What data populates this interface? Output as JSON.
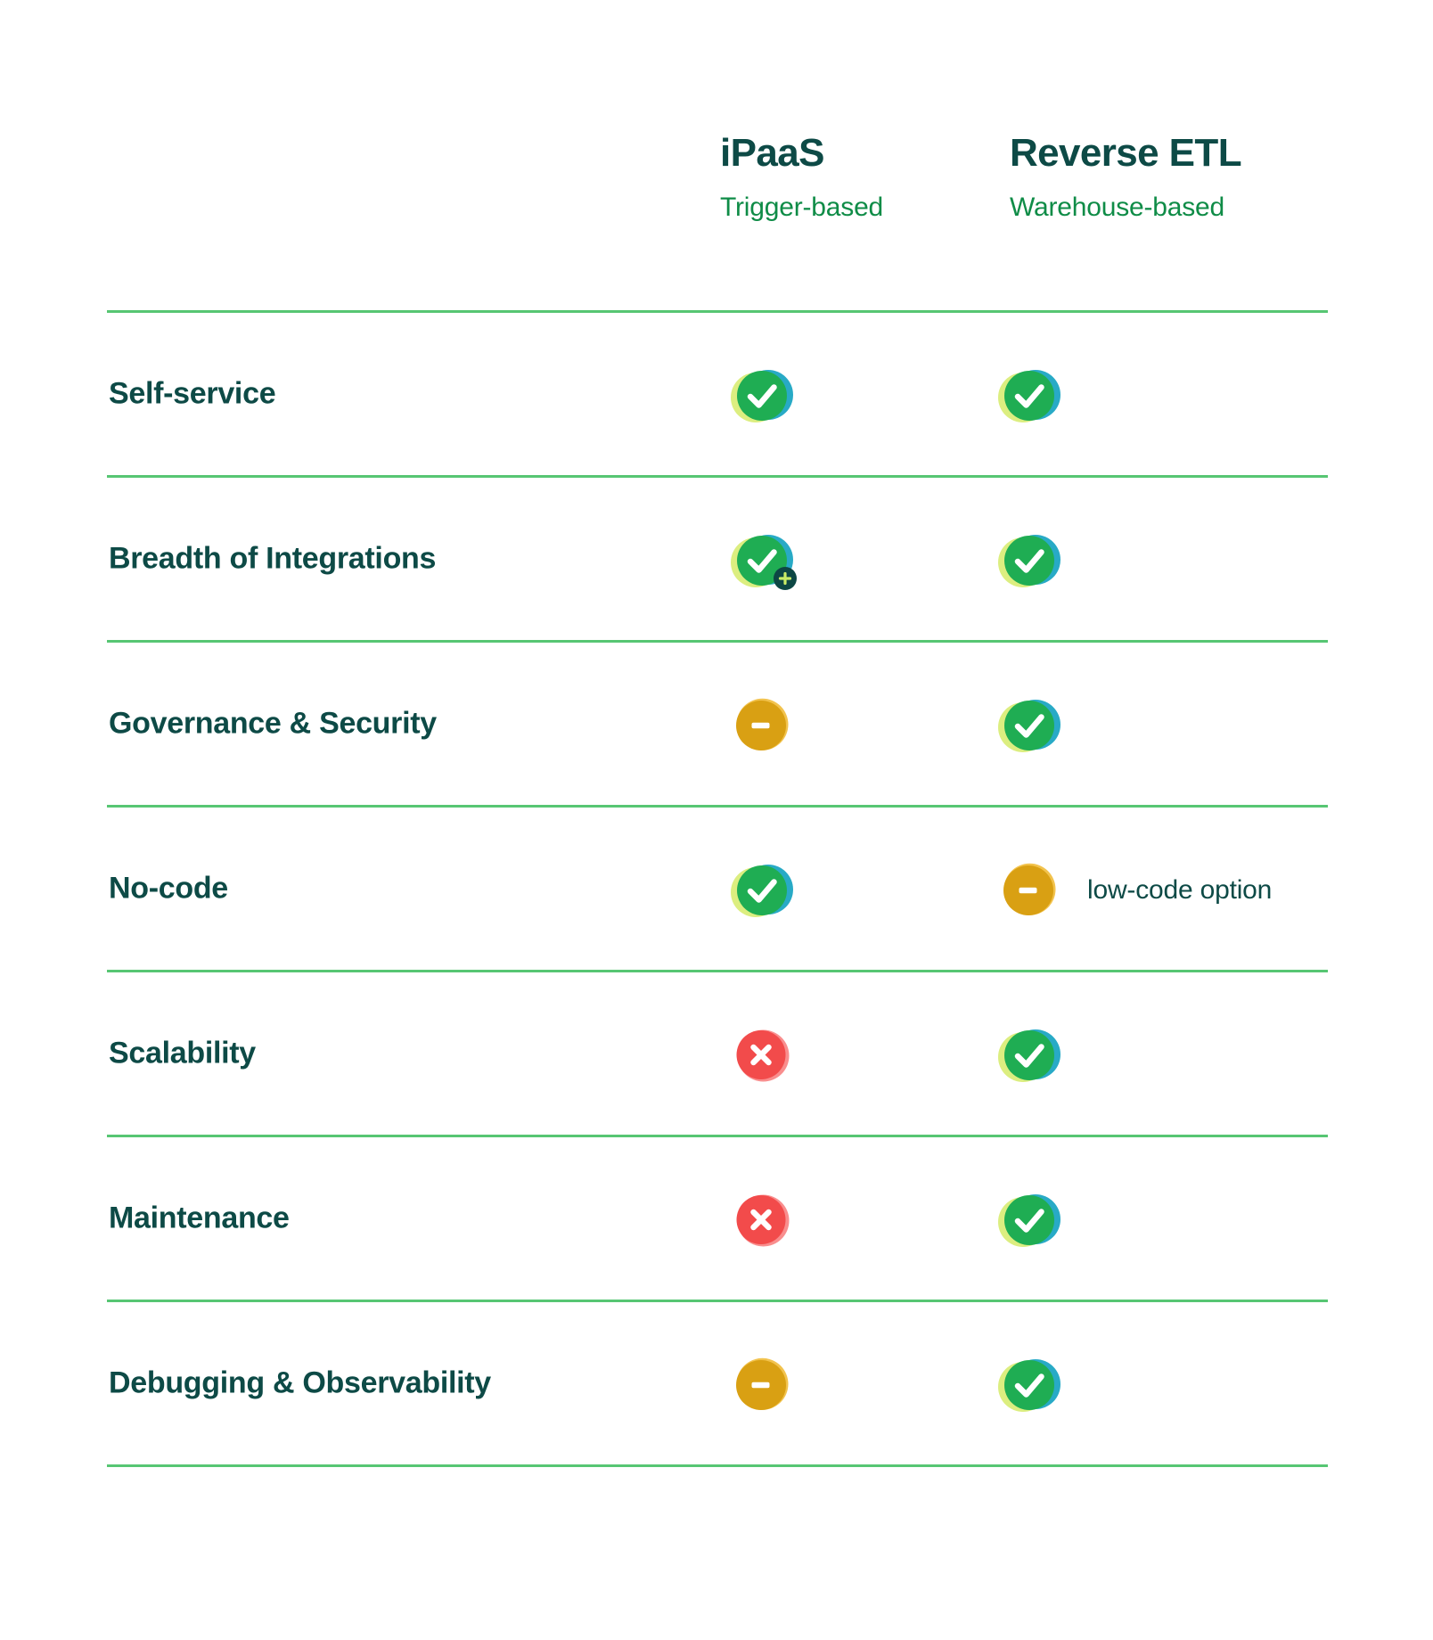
{
  "header": {
    "columns": [
      {
        "title": "iPaaS",
        "subtitle": "Trigger-based"
      },
      {
        "title": "Reverse ETL",
        "subtitle": "Warehouse-based"
      }
    ]
  },
  "table": {
    "rows": [
      {
        "label": "Self-service",
        "ipaas": {
          "icon": "check-icon"
        },
        "reverse_etl": {
          "icon": "check-icon"
        }
      },
      {
        "label": "Breadth of Integrations",
        "ipaas": {
          "icon": "check-plus-icon"
        },
        "reverse_etl": {
          "icon": "check-icon"
        }
      },
      {
        "label": "Governance & Security",
        "ipaas": {
          "icon": "minus-icon"
        },
        "reverse_etl": {
          "icon": "check-icon"
        }
      },
      {
        "label": "No-code",
        "ipaas": {
          "icon": "check-icon"
        },
        "reverse_etl": {
          "icon": "minus-icon",
          "note": "low-code option"
        }
      },
      {
        "label": "Scalability",
        "ipaas": {
          "icon": "cross-icon"
        },
        "reverse_etl": {
          "icon": "check-icon"
        }
      },
      {
        "label": "Maintenance",
        "ipaas": {
          "icon": "cross-icon"
        },
        "reverse_etl": {
          "icon": "check-icon"
        }
      },
      {
        "label": "Debugging & Observability",
        "ipaas": {
          "icon": "minus-icon"
        },
        "reverse_etl": {
          "icon": "check-icon"
        }
      }
    ]
  },
  "colors": {
    "heading_text": "#0d4a46",
    "subtitle_text": "#0f8c47",
    "label_text": "#0d4a46",
    "note_text": "#0d4a46",
    "divider": "#57c673",
    "check_main": "#1fad53",
    "check_lime": "#dcee80",
    "check_teal": "#28aac6",
    "minus_main": "#d9a013",
    "minus_light": "#f2c34e",
    "cross_main": "#f24b4b",
    "cross_light": "#f98e8e",
    "plus_badge_bg": "#0d4744",
    "plus_badge_glyph": "#c9ec66",
    "icon_glyph": "#ffffff"
  }
}
